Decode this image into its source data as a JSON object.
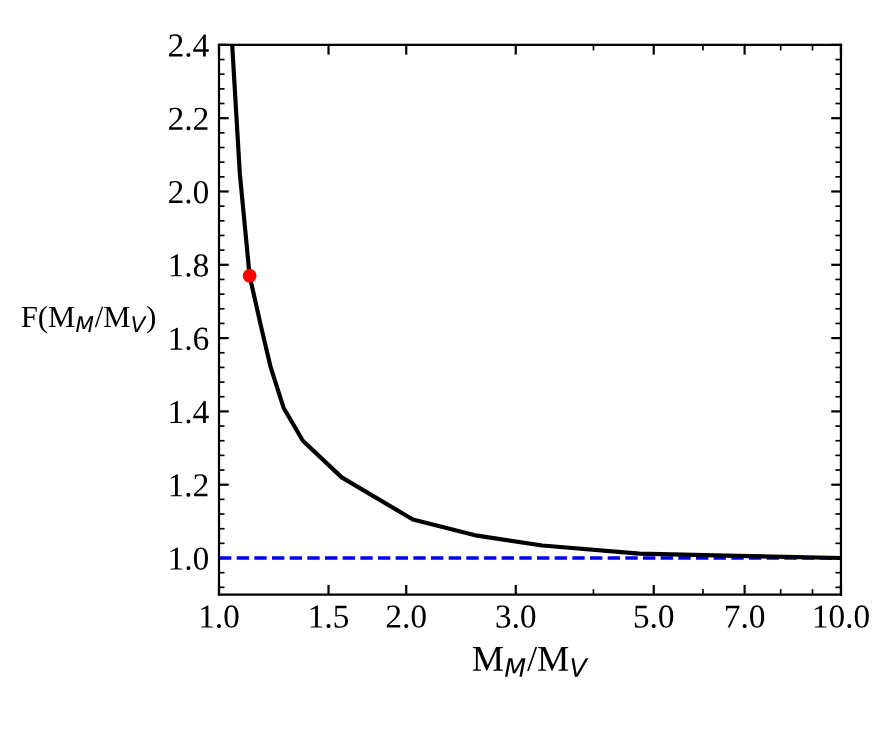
{
  "chart_data": {
    "type": "line",
    "xlabel": "M$_{M}$/M$_{V}$",
    "ylabel": "F(M$_{M}$/M$_{V}$)",
    "log": "x",
    "xlim": [
      1,
      10
    ],
    "ylim": [
      0.9,
      2.4
    ],
    "xticks": [
      {
        "value": 1,
        "label": "1.0"
      },
      {
        "value": 1.5,
        "label": "1.5"
      },
      {
        "value": 2,
        "label": "2.0"
      },
      {
        "value": 3,
        "label": "3.0"
      },
      {
        "value": 5,
        "label": "5.0"
      },
      {
        "value": 7,
        "label": "7.0"
      },
      {
        "value": 10,
        "label": "10.0"
      }
    ],
    "yticks": [
      {
        "value": 1,
        "label": "1.0"
      },
      {
        "value": 1.2,
        "label": "1.2"
      },
      {
        "value": 1.4,
        "label": "1.4"
      },
      {
        "value": 1.6,
        "label": "1.6"
      },
      {
        "value": 1.8,
        "label": "1.8"
      },
      {
        "value": 2,
        "label": "2.0"
      },
      {
        "value": 2.2,
        "label": "2.2"
      },
      {
        "value": 2.4,
        "label": "2.4"
      }
    ],
    "grid": false,
    "legend": false,
    "series": [
      {
        "color": "#000000",
        "marker": "none",
        "line_style": "solid",
        "x": [
          1.05,
          1.08,
          1.12,
          1.169,
          1.211,
          1.27,
          1.364,
          1.575,
          2.05,
          2.6,
          3.31,
          4.74,
          6.8,
          10
        ],
        "values": [
          2.4,
          2.05,
          1.77,
          1.63,
          1.52,
          1.41,
          1.32,
          1.22,
          1.105,
          1.061,
          1.034,
          1.012,
          1.006,
          1.0
        ]
      },
      {
        "type": "scatter",
        "color": "#ff0000",
        "marker": "circle",
        "x": [
          1.12
        ],
        "values": [
          1.77
        ]
      }
    ],
    "ref_lines": [
      {
        "axis": "y",
        "value": 1.0,
        "color": "#0000ff",
        "line_style": "dashed"
      }
    ]
  }
}
